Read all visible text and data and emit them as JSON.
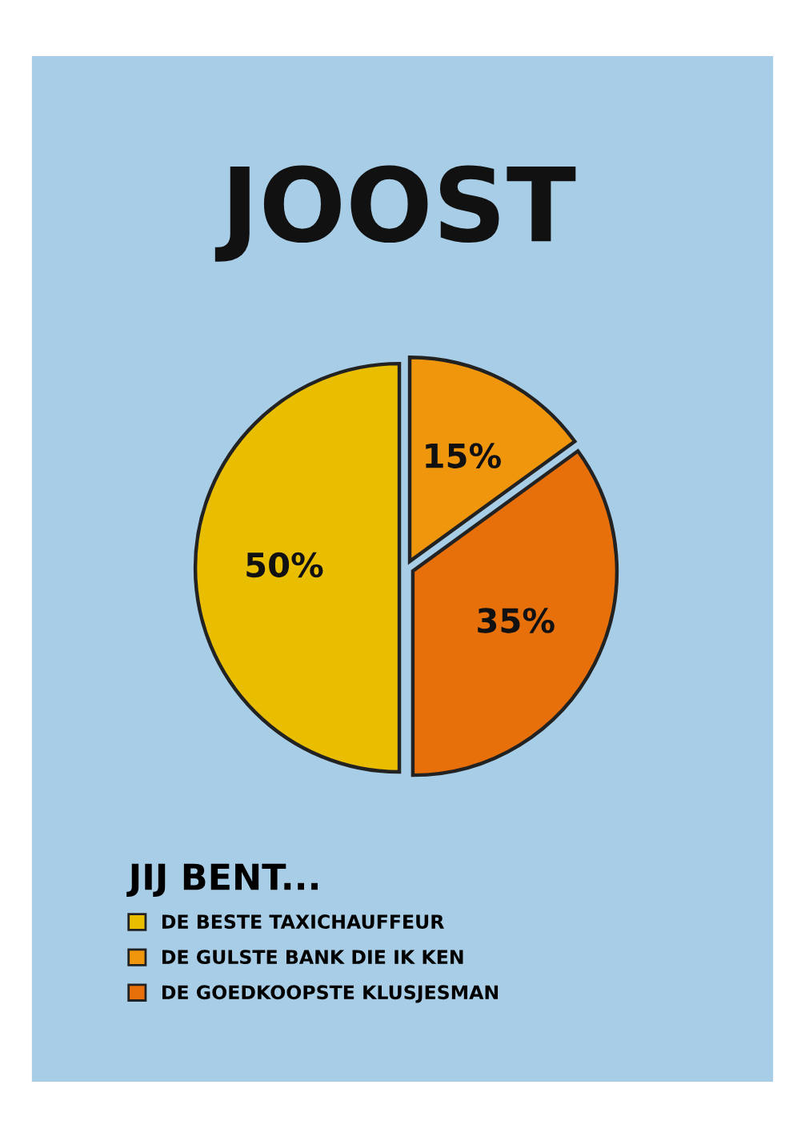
{
  "chart_data": {
    "type": "pie",
    "title": "JOOST",
    "legend_title": "JIJ BENT...",
    "categories": [
      "DE BESTE TAXICHAUFFEUR",
      "DE GULSTE BANK DIE IK KEN",
      "DE GOEDKOOPSTE KLUSJESMAN"
    ],
    "values": [
      50,
      15,
      35
    ],
    "colors": [
      "#e9bd00",
      "#f0960c",
      "#e8700a"
    ],
    "value_labels": [
      "50%",
      "15%",
      "35%"
    ],
    "legend": "bottom left"
  }
}
